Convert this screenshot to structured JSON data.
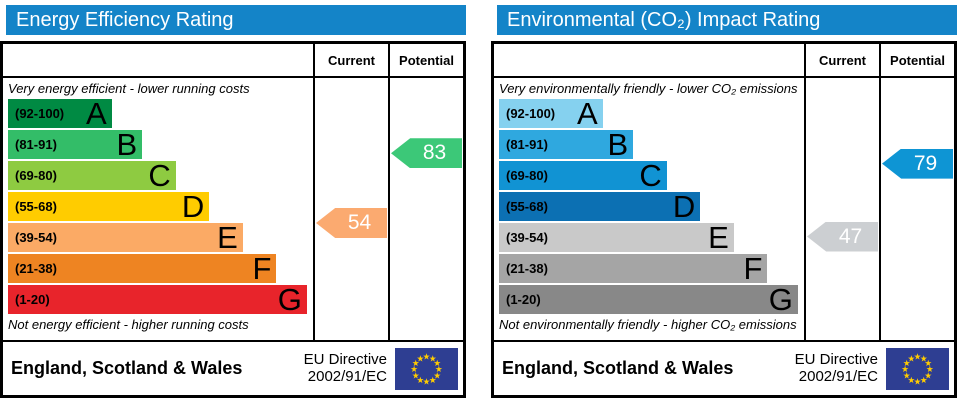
{
  "colors": {
    "header_bg": "#1484c8",
    "border": "#000000",
    "eu_flag_bg": "#2e3e92",
    "eu_star": "#ffcc00"
  },
  "charts": [
    {
      "title": "Energy Efficiency Rating",
      "columns": {
        "current": "Current",
        "potential": "Potential"
      },
      "top_caption": "Very energy efficient - lower running costs",
      "bottom_caption": "Not energy efficient - higher running costs",
      "bands": [
        {
          "range": "(92-100)",
          "letter": "A",
          "min": 92,
          "max": 100,
          "color": "#008a43",
          "width_pct": 34
        },
        {
          "range": "(81-91)",
          "letter": "B",
          "min": 81,
          "max": 91,
          "color": "#33bd68",
          "width_pct": 44
        },
        {
          "range": "(69-80)",
          "letter": "C",
          "min": 69,
          "max": 80,
          "color": "#8ecb41",
          "width_pct": 55
        },
        {
          "range": "(55-68)",
          "letter": "D",
          "min": 55,
          "max": 68,
          "color": "#ffcc00",
          "width_pct": 66
        },
        {
          "range": "(39-54)",
          "letter": "E",
          "min": 39,
          "max": 54,
          "color": "#fbaa65",
          "width_pct": 77
        },
        {
          "range": "(21-38)",
          "letter": "F",
          "min": 21,
          "max": 38,
          "color": "#ee8422",
          "width_pct": 88
        },
        {
          "range": "(1-20)",
          "letter": "G",
          "min": 1,
          "max": 20,
          "color": "#e8242b",
          "width_pct": 98
        }
      ],
      "current": {
        "value": 54,
        "color": "#fbaa70"
      },
      "potential": {
        "value": 83,
        "color": "#3cc878"
      },
      "footer": {
        "region": "England, Scotland & Wales",
        "directive_line1": "EU Directive",
        "directive_line2": "2002/91/EC"
      }
    },
    {
      "title": "Environmental (CO₂) Impact Rating",
      "columns": {
        "current": "Current",
        "potential": "Potential"
      },
      "top_caption": "Very environmentally friendly - lower CO₂ emissions",
      "bottom_caption": "Not environmentally friendly - higher CO₂ emissions",
      "bands": [
        {
          "range": "(92-100)",
          "letter": "A",
          "min": 92,
          "max": 100,
          "color": "#85d1ef",
          "width_pct": 34
        },
        {
          "range": "(81-91)",
          "letter": "B",
          "min": 81,
          "max": 91,
          "color": "#2fa8df",
          "width_pct": 44
        },
        {
          "range": "(69-80)",
          "letter": "C",
          "min": 69,
          "max": 80,
          "color": "#1193d3",
          "width_pct": 55
        },
        {
          "range": "(55-68)",
          "letter": "D",
          "min": 55,
          "max": 68,
          "color": "#0c70b3",
          "width_pct": 66
        },
        {
          "range": "(39-54)",
          "letter": "E",
          "min": 39,
          "max": 54,
          "color": "#c9c9c9",
          "width_pct": 77
        },
        {
          "range": "(21-38)",
          "letter": "F",
          "min": 21,
          "max": 38,
          "color": "#a5a5a5",
          "width_pct": 88
        },
        {
          "range": "(1-20)",
          "letter": "G",
          "min": 1,
          "max": 20,
          "color": "#888888",
          "width_pct": 98
        }
      ],
      "current": {
        "value": 47,
        "color": "#cccfd2"
      },
      "potential": {
        "value": 79,
        "color": "#0e95d4"
      },
      "footer": {
        "region": "England, Scotland & Wales",
        "directive_line1": "EU Directive",
        "directive_line2": "2002/91/EC"
      }
    }
  ],
  "chart_data": [
    {
      "type": "bar",
      "title": "Energy Efficiency Rating",
      "categories": [
        "A (92-100)",
        "B (81-91)",
        "C (69-80)",
        "D (55-68)",
        "E (39-54)",
        "F (21-38)",
        "G (1-20)"
      ],
      "band_width_pct": [
        34,
        44,
        55,
        66,
        77,
        88,
        98
      ],
      "current": 54,
      "current_band": "E",
      "potential": 83,
      "potential_band": "B",
      "annotations": [
        "Very energy efficient - lower running costs",
        "Not energy efficient - higher running costs",
        "England, Scotland & Wales",
        "EU Directive 2002/91/EC"
      ]
    },
    {
      "type": "bar",
      "title": "Environmental (CO₂) Impact Rating",
      "categories": [
        "A (92-100)",
        "B (81-91)",
        "C (69-80)",
        "D (55-68)",
        "E (39-54)",
        "F (21-38)",
        "G (1-20)"
      ],
      "band_width_pct": [
        34,
        44,
        55,
        66,
        77,
        88,
        98
      ],
      "current": 47,
      "current_band": "E",
      "potential": 79,
      "potential_band": "C",
      "annotations": [
        "Very environmentally friendly - lower CO₂ emissions",
        "Not environmentally friendly - higher CO₂ emissions",
        "England, Scotland & Wales",
        "EU Directive 2002/91/EC"
      ]
    }
  ]
}
